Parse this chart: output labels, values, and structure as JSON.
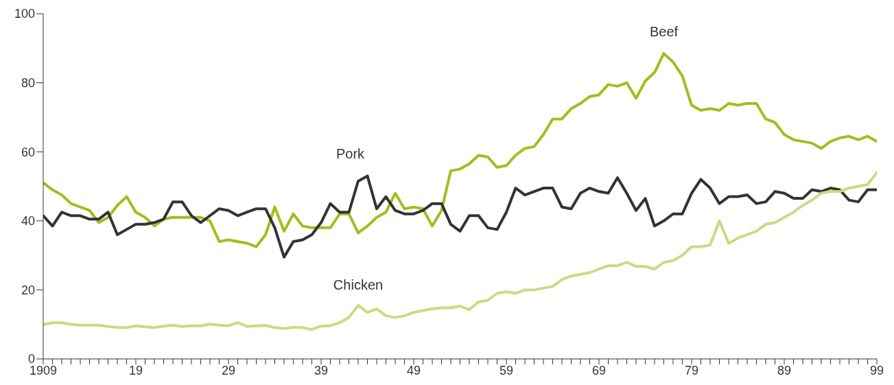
{
  "chart_data": {
    "type": "line",
    "x": [
      1909,
      1910,
      1911,
      1912,
      1913,
      1914,
      1915,
      1916,
      1917,
      1918,
      1919,
      1920,
      1921,
      1922,
      1923,
      1924,
      1925,
      1926,
      1927,
      1928,
      1929,
      1930,
      1931,
      1932,
      1933,
      1934,
      1935,
      1936,
      1937,
      1938,
      1939,
      1940,
      1941,
      1942,
      1943,
      1944,
      1945,
      1946,
      1947,
      1948,
      1949,
      1950,
      1951,
      1952,
      1953,
      1954,
      1955,
      1956,
      1957,
      1958,
      1959,
      1960,
      1961,
      1962,
      1963,
      1964,
      1965,
      1966,
      1967,
      1968,
      1969,
      1970,
      1971,
      1972,
      1973,
      1974,
      1975,
      1976,
      1977,
      1978,
      1979,
      1980,
      1981,
      1982,
      1983,
      1984,
      1985,
      1986,
      1987,
      1988,
      1989,
      1990,
      1991,
      1992,
      1993,
      1994,
      1995,
      1996,
      1997,
      1998,
      1999
    ],
    "series": [
      {
        "name": "Beef",
        "color": "#a3bd1f",
        "values": [
          51,
          49,
          47.5,
          45,
          44,
          43,
          39.5,
          41,
          44.5,
          47,
          42.5,
          41,
          38.5,
          40.5,
          41,
          41,
          41,
          41,
          40,
          34,
          34.5,
          34,
          33.5,
          32.5,
          36,
          44,
          37,
          42,
          38.5,
          38,
          38,
          38,
          42,
          42,
          36.5,
          38.5,
          41,
          42.5,
          48,
          43.5,
          44,
          43.5,
          38.5,
          43,
          54.5,
          55,
          56.5,
          59,
          58.5,
          55.5,
          56,
          59,
          61,
          61.5,
          65,
          69.5,
          69.5,
          72.5,
          74,
          76,
          76.5,
          79.5,
          79,
          80,
          75.5,
          80.5,
          83,
          88.5,
          86,
          82,
          73.5,
          72,
          72.5,
          72,
          74,
          73.5,
          74,
          74,
          69.5,
          68.5,
          65,
          63.5,
          63,
          62.5,
          61,
          63,
          64,
          64.5,
          63.5,
          64.5,
          63
        ]
      },
      {
        "name": "Pork",
        "color": "#333333",
        "values": [
          41.5,
          38.5,
          42.5,
          41.5,
          41.5,
          40.5,
          40.5,
          42.5,
          36,
          37.5,
          39,
          39,
          39.5,
          40.5,
          45.5,
          45.5,
          41.5,
          39.5,
          41.5,
          43.5,
          43,
          41.5,
          42.5,
          43.5,
          43.5,
          38,
          29.5,
          34,
          34.5,
          36,
          39.5,
          45,
          42.5,
          42.5,
          51.5,
          53,
          43.5,
          47,
          43,
          42,
          42,
          43,
          45,
          45,
          39,
          37,
          41.5,
          41.5,
          38,
          37.5,
          42.5,
          49.5,
          47.5,
          48.5,
          49.5,
          49.5,
          44,
          43.5,
          48,
          49.5,
          48.5,
          48,
          52.5,
          48,
          43,
          46.5,
          38.5,
          40,
          42,
          42,
          48,
          52,
          49.5,
          45,
          47,
          47,
          47.5,
          45,
          45.5,
          48.5,
          48,
          46.5,
          46.5,
          49,
          48.5,
          49.5,
          49,
          46,
          45.5,
          49,
          49
        ]
      },
      {
        "name": "Chicken",
        "color": "#c9dc7f",
        "values": [
          10,
          10.5,
          10.5,
          10,
          9.8,
          9.8,
          9.8,
          9.4,
          9.1,
          9.1,
          9.6,
          9.3,
          9.1,
          9.5,
          9.8,
          9.4,
          9.6,
          9.6,
          10.1,
          9.8,
          9.6,
          10.5,
          9.4,
          9.6,
          9.7,
          9.1,
          8.8,
          9.2,
          9.1,
          8.5,
          9.5,
          9.6,
          10.5,
          12,
          15.5,
          13.5,
          14.5,
          12.5,
          12,
          12.5,
          13.5,
          14,
          14.5,
          14.8,
          14.8,
          15.3,
          14.3,
          16.5,
          17,
          19,
          19.5,
          19,
          20,
          20,
          20.5,
          21,
          23,
          24,
          24.5,
          25,
          26,
          27,
          27,
          28,
          26.8,
          26.8,
          26,
          28,
          28.5,
          30,
          32.5,
          32.5,
          33,
          40,
          33.5,
          35,
          36,
          37,
          39,
          39.5,
          41,
          42.5,
          44.5,
          46,
          48,
          48.5,
          48.5,
          49.5,
          50,
          50.5,
          54
        ]
      }
    ],
    "xlim": [
      1909,
      1999
    ],
    "xticks": [
      {
        "value": 1909,
        "label": "1909"
      },
      {
        "value": 1910,
        "label": null
      },
      {
        "value": 1911,
        "label": null
      },
      {
        "value": 1912,
        "label": null
      },
      {
        "value": 1913,
        "label": null
      },
      {
        "value": 1914,
        "label": null
      },
      {
        "value": 1915,
        "label": null
      },
      {
        "value": 1916,
        "label": null
      },
      {
        "value": 1917,
        "label": null
      },
      {
        "value": 1918,
        "label": null
      },
      {
        "value": 1919,
        "label": "19"
      },
      {
        "value": 1920,
        "label": null
      },
      {
        "value": 1921,
        "label": null
      },
      {
        "value": 1922,
        "label": null
      },
      {
        "value": 1923,
        "label": null
      },
      {
        "value": 1924,
        "label": null
      },
      {
        "value": 1925,
        "label": null
      },
      {
        "value": 1926,
        "label": null
      },
      {
        "value": 1927,
        "label": null
      },
      {
        "value": 1928,
        "label": null
      },
      {
        "value": 1929,
        "label": "29"
      },
      {
        "value": 1930,
        "label": null
      },
      {
        "value": 1931,
        "label": null
      },
      {
        "value": 1932,
        "label": null
      },
      {
        "value": 1933,
        "label": null
      },
      {
        "value": 1934,
        "label": null
      },
      {
        "value": 1935,
        "label": null
      },
      {
        "value": 1936,
        "label": null
      },
      {
        "value": 1937,
        "label": null
      },
      {
        "value": 1938,
        "label": null
      },
      {
        "value": 1939,
        "label": "39"
      },
      {
        "value": 1940,
        "label": null
      },
      {
        "value": 1941,
        "label": null
      },
      {
        "value": 1942,
        "label": null
      },
      {
        "value": 1943,
        "label": null
      },
      {
        "value": 1944,
        "label": null
      },
      {
        "value": 1945,
        "label": null
      },
      {
        "value": 1946,
        "label": null
      },
      {
        "value": 1947,
        "label": null
      },
      {
        "value": 1948,
        "label": null
      },
      {
        "value": 1949,
        "label": "49"
      },
      {
        "value": 1950,
        "label": null
      },
      {
        "value": 1951,
        "label": null
      },
      {
        "value": 1952,
        "label": null
      },
      {
        "value": 1953,
        "label": null
      },
      {
        "value": 1954,
        "label": null
      },
      {
        "value": 1955,
        "label": null
      },
      {
        "value": 1956,
        "label": null
      },
      {
        "value": 1957,
        "label": null
      },
      {
        "value": 1958,
        "label": null
      },
      {
        "value": 1959,
        "label": "59"
      },
      {
        "value": 1960,
        "label": null
      },
      {
        "value": 1961,
        "label": null
      },
      {
        "value": 1962,
        "label": null
      },
      {
        "value": 1963,
        "label": null
      },
      {
        "value": 1964,
        "label": null
      },
      {
        "value": 1965,
        "label": null
      },
      {
        "value": 1966,
        "label": null
      },
      {
        "value": 1967,
        "label": null
      },
      {
        "value": 1968,
        "label": null
      },
      {
        "value": 1969,
        "label": "69"
      },
      {
        "value": 1970,
        "label": null
      },
      {
        "value": 1971,
        "label": null
      },
      {
        "value": 1972,
        "label": null
      },
      {
        "value": 1973,
        "label": null
      },
      {
        "value": 1974,
        "label": null
      },
      {
        "value": 1975,
        "label": null
      },
      {
        "value": 1976,
        "label": null
      },
      {
        "value": 1977,
        "label": null
      },
      {
        "value": 1978,
        "label": null
      },
      {
        "value": 1979,
        "label": "79"
      },
      {
        "value": 1980,
        "label": null
      },
      {
        "value": 1981,
        "label": null
      },
      {
        "value": 1982,
        "label": null
      },
      {
        "value": 1983,
        "label": null
      },
      {
        "value": 1984,
        "label": null
      },
      {
        "value": 1985,
        "label": null
      },
      {
        "value": 1986,
        "label": null
      },
      {
        "value": 1987,
        "label": null
      },
      {
        "value": 1988,
        "label": null
      },
      {
        "value": 1989,
        "label": "89"
      },
      {
        "value": 1990,
        "label": null
      },
      {
        "value": 1991,
        "label": null
      },
      {
        "value": 1992,
        "label": null
      },
      {
        "value": 1993,
        "label": null
      },
      {
        "value": 1994,
        "label": null
      },
      {
        "value": 1995,
        "label": null
      },
      {
        "value": 1996,
        "label": null
      },
      {
        "value": 1997,
        "label": null
      },
      {
        "value": 1998,
        "label": null
      },
      {
        "value": 1999,
        "label": "99"
      }
    ],
    "ylim": [
      0,
      100
    ],
    "yticks": [
      0,
      20,
      40,
      60,
      80,
      100
    ],
    "grid": false,
    "legend": false,
    "marker": "none",
    "line_style": "solid"
  }
}
